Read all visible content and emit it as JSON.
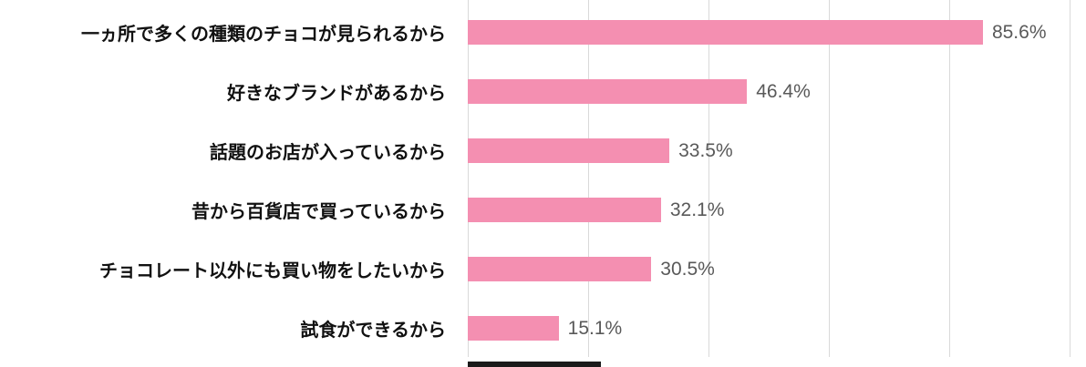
{
  "chart_data": {
    "type": "bar",
    "orientation": "horizontal",
    "title": "",
    "xlabel": "",
    "ylabel": "",
    "xlim": [
      0,
      100
    ],
    "grid": true,
    "gridlines_percent": [
      0,
      20,
      40,
      60,
      80,
      100
    ],
    "categories": [
      "一ヵ所で多くの種類のチョコが見られるから",
      "好きなブランドがあるから",
      "話題のお店が入っているから",
      "昔から百貨店で買っているから",
      "チョコレート以外にも買い物をしたいから",
      "試食ができるから"
    ],
    "values": [
      85.6,
      46.4,
      33.5,
      32.1,
      30.5,
      15.1
    ],
    "value_labels": [
      "85.6%",
      "46.4%",
      "33.5%",
      "32.1%",
      "30.5%",
      "15.1%"
    ],
    "colors": {
      "bar": "#f48fb1",
      "grid": "#d9d9d9",
      "category_label": "#111111",
      "value_label": "#595959",
      "axis_segment": "#1a1a1a"
    }
  }
}
